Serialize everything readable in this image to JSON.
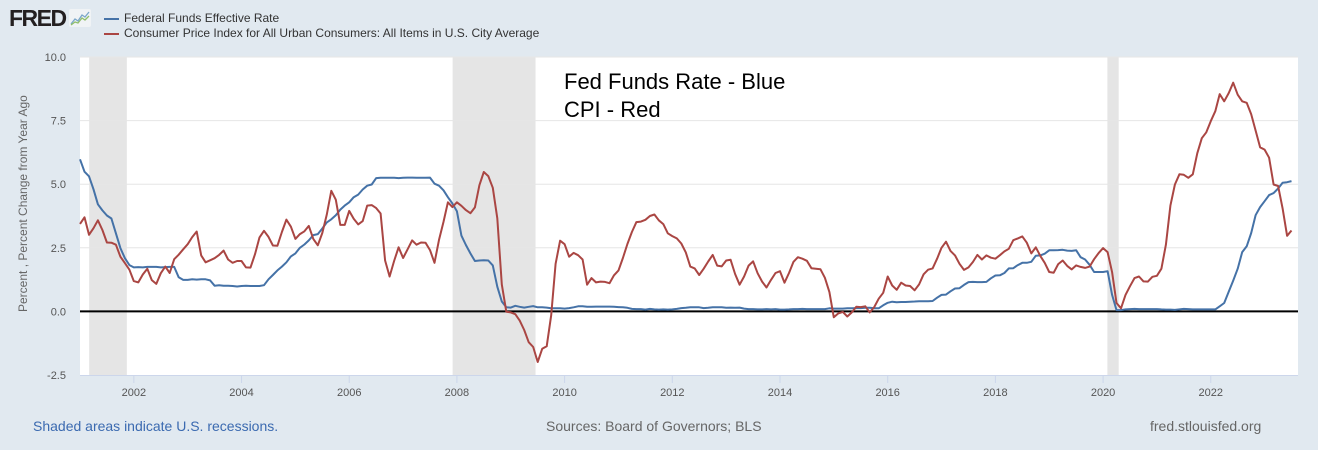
{
  "header": {
    "logo_text": "FRED",
    "logo_icon": "chart-line-icon"
  },
  "footer": {
    "recession_note": "Shaded areas indicate U.S. recessions.",
    "sources": "Sources: Board of Governors; BLS",
    "site": "fred.stlouisfed.org"
  },
  "chart_data": {
    "type": "line",
    "title": "",
    "xlabel": "",
    "ylabel": "Percent , Percent Change from Year Ago",
    "ylim": [
      -2.5,
      10.0
    ],
    "xlim": [
      2001.0,
      2023.62
    ],
    "yticks": [
      "-2.5",
      "0.0",
      "2.5",
      "5.0",
      "7.5",
      "10.0"
    ],
    "ytick_values": [
      -2.5,
      0,
      2.5,
      5,
      7.5,
      10
    ],
    "xticks": [
      "2002",
      "2004",
      "2006",
      "2008",
      "2010",
      "2012",
      "2014",
      "2016",
      "2018",
      "2020",
      "2022"
    ],
    "xtick_values": [
      2002,
      2004,
      2006,
      2008,
      2010,
      2012,
      2014,
      2016,
      2018,
      2020,
      2022
    ],
    "grid": true,
    "legend_position": "top-left",
    "x_start": "2001-01",
    "x_frequency": "monthly",
    "annotations": [
      "Fed Funds Rate - Blue",
      "CPI - Red"
    ],
    "recessions": [
      [
        2001.17,
        2001.87
      ],
      [
        2007.92,
        2009.46
      ],
      [
        2020.08,
        2020.29
      ]
    ],
    "series": [
      {
        "name": "Federal Funds Effective Rate",
        "color": "#4572a7",
        "values": [
          5.98,
          5.49,
          5.31,
          4.8,
          4.21,
          3.97,
          3.77,
          3.65,
          3.07,
          2.49,
          2.09,
          1.82,
          1.73,
          1.74,
          1.73,
          1.75,
          1.75,
          1.75,
          1.73,
          1.74,
          1.75,
          1.75,
          1.34,
          1.24,
          1.24,
          1.26,
          1.25,
          1.26,
          1.26,
          1.22,
          1.01,
          1.03,
          1.01,
          1.01,
          1.0,
          0.98,
          1.0,
          1.01,
          1.0,
          1.0,
          1.0,
          1.03,
          1.26,
          1.43,
          1.61,
          1.76,
          1.93,
          2.16,
          2.28,
          2.5,
          2.63,
          2.79,
          3.0,
          3.04,
          3.26,
          3.5,
          3.62,
          3.78,
          4.0,
          4.16,
          4.29,
          4.49,
          4.59,
          4.79,
          4.94,
          4.99,
          5.24,
          5.25,
          5.25,
          5.25,
          5.25,
          5.24,
          5.25,
          5.26,
          5.26,
          5.25,
          5.25,
          5.25,
          5.26,
          5.02,
          4.94,
          4.76,
          4.49,
          4.24,
          3.94,
          2.98,
          2.61,
          2.28,
          1.98,
          2.0,
          2.01,
          2.0,
          1.81,
          0.97,
          0.39,
          0.16,
          0.15,
          0.22,
          0.18,
          0.15,
          0.18,
          0.21,
          0.16,
          0.16,
          0.15,
          0.12,
          0.12,
          0.12,
          0.11,
          0.13,
          0.16,
          0.2,
          0.2,
          0.18,
          0.18,
          0.19,
          0.19,
          0.19,
          0.19,
          0.18,
          0.17,
          0.16,
          0.14,
          0.1,
          0.09,
          0.09,
          0.07,
          0.1,
          0.08,
          0.07,
          0.08,
          0.07,
          0.08,
          0.1,
          0.13,
          0.14,
          0.16,
          0.16,
          0.16,
          0.13,
          0.14,
          0.16,
          0.16,
          0.16,
          0.14,
          0.15,
          0.14,
          0.15,
          0.11,
          0.09,
          0.09,
          0.08,
          0.08,
          0.09,
          0.08,
          0.09,
          0.07,
          0.07,
          0.08,
          0.09,
          0.09,
          0.1,
          0.09,
          0.09,
          0.09,
          0.09,
          0.09,
          0.12,
          0.11,
          0.11,
          0.11,
          0.12,
          0.12,
          0.13,
          0.13,
          0.14,
          0.14,
          0.12,
          0.12,
          0.24,
          0.34,
          0.38,
          0.36,
          0.37,
          0.37,
          0.38,
          0.39,
          0.4,
          0.4,
          0.4,
          0.41,
          0.54,
          0.65,
          0.66,
          0.79,
          0.9,
          0.91,
          1.04,
          1.15,
          1.16,
          1.15,
          1.15,
          1.16,
          1.3,
          1.41,
          1.42,
          1.51,
          1.69,
          1.7,
          1.82,
          1.91,
          1.91,
          1.95,
          2.19,
          2.2,
          2.27,
          2.4,
          2.4,
          2.41,
          2.42,
          2.39,
          2.38,
          2.4,
          2.13,
          2.04,
          1.83,
          1.55,
          1.55,
          1.55,
          1.58,
          0.65,
          0.05,
          0.05,
          0.08,
          0.09,
          0.1,
          0.09,
          0.09,
          0.09,
          0.09,
          0.09,
          0.08,
          0.07,
          0.07,
          0.06,
          0.08,
          0.1,
          0.09,
          0.08,
          0.08,
          0.08,
          0.08,
          0.08,
          0.08,
          0.2,
          0.33,
          0.77,
          1.21,
          1.68,
          2.33,
          2.56,
          3.08,
          3.78,
          4.1,
          4.33,
          4.57,
          4.65,
          4.83,
          5.06,
          5.08,
          5.12
        ]
      },
      {
        "name": "Consumer Price Index for All Urban Consumers: All Items in U.S. City Average",
        "color": "#aa4643",
        "values": [
          3.44,
          3.7,
          3.01,
          3.27,
          3.58,
          3.2,
          2.71,
          2.7,
          2.62,
          2.15,
          1.9,
          1.64,
          1.19,
          1.14,
          1.45,
          1.68,
          1.23,
          1.08,
          1.5,
          1.76,
          1.51,
          2.05,
          2.23,
          2.44,
          2.64,
          2.92,
          3.14,
          2.2,
          1.93,
          2.01,
          2.09,
          2.22,
          2.39,
          2.04,
          1.91,
          1.98,
          1.98,
          1.73,
          1.72,
          2.25,
          2.91,
          3.17,
          2.93,
          2.59,
          2.58,
          3.12,
          3.61,
          3.33,
          2.85,
          3.04,
          3.15,
          3.36,
          2.85,
          2.6,
          3.08,
          3.81,
          4.74,
          4.39,
          3.4,
          3.4,
          3.95,
          3.64,
          3.42,
          3.55,
          4.16,
          4.18,
          4.06,
          3.85,
          2.0,
          1.37,
          1.98,
          2.52,
          2.1,
          2.44,
          2.79,
          2.62,
          2.71,
          2.7,
          2.41,
          1.91,
          2.81,
          3.52,
          4.29,
          4.1,
          4.29,
          4.15,
          3.98,
          3.86,
          4.09,
          4.96,
          5.48,
          5.32,
          4.86,
          3.66,
          1.06,
          -0.01,
          -0.04,
          -0.11,
          -0.36,
          -0.73,
          -1.21,
          -1.4,
          -1.99,
          -1.47,
          -1.37,
          -0.15,
          1.87,
          2.78,
          2.64,
          2.15,
          2.3,
          2.21,
          2.04,
          1.05,
          1.31,
          1.14,
          1.17,
          1.16,
          1.11,
          1.42,
          1.61,
          2.1,
          2.65,
          3.12,
          3.51,
          3.53,
          3.6,
          3.75,
          3.81,
          3.58,
          3.43,
          3.07,
          2.96,
          2.87,
          2.67,
          2.32,
          1.76,
          1.69,
          1.43,
          1.68,
          1.96,
          2.22,
          1.8,
          1.77,
          2.0,
          2.03,
          1.47,
          1.05,
          1.37,
          1.8,
          1.97,
          1.5,
          1.17,
          0.94,
          1.24,
          1.51,
          1.58,
          1.13,
          1.51,
          1.95,
          2.13,
          2.07,
          1.99,
          1.7,
          1.68,
          1.66,
          1.32,
          0.76,
          -0.23,
          -0.08,
          -0.02,
          -0.2,
          -0.04,
          0.18,
          0.17,
          0.2,
          -0.04,
          0.17,
          0.5,
          0.73,
          1.37,
          1.02,
          0.85,
          1.13,
          1.02,
          1.0,
          0.83,
          1.06,
          1.46,
          1.64,
          1.69,
          2.07,
          2.5,
          2.74,
          2.38,
          2.2,
          1.87,
          1.63,
          1.73,
          1.94,
          2.22,
          2.04,
          2.2,
          2.11,
          2.07,
          2.21,
          2.36,
          2.46,
          2.8,
          2.87,
          2.95,
          2.7,
          2.28,
          2.52,
          2.18,
          1.91,
          1.55,
          1.52,
          1.86,
          2.0,
          1.79,
          1.65,
          1.81,
          1.75,
          1.71,
          1.76,
          2.05,
          2.29,
          2.49,
          2.33,
          1.54,
          0.33,
          0.12,
          0.65,
          0.99,
          1.31,
          1.37,
          1.18,
          1.17,
          1.36,
          1.4,
          1.68,
          2.62,
          4.16,
          4.99,
          5.39,
          5.37,
          5.25,
          5.39,
          6.22,
          6.81,
          7.04,
          7.48,
          7.87,
          8.54,
          8.26,
          8.58,
          8.99,
          8.52,
          8.26,
          8.2,
          7.75,
          7.11,
          6.45,
          6.36,
          6.04,
          4.99,
          4.93,
          4.05,
          2.97,
          3.18
        ]
      }
    ]
  }
}
